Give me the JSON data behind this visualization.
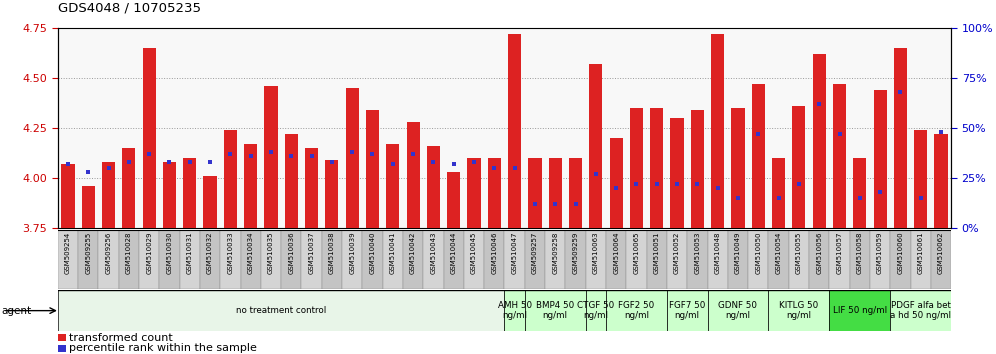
{
  "title": "GDS4048 / 10705235",
  "samples": [
    "GSM509254",
    "GSM509255",
    "GSM509256",
    "GSM510028",
    "GSM510029",
    "GSM510030",
    "GSM510031",
    "GSM510032",
    "GSM510033",
    "GSM510034",
    "GSM510035",
    "GSM510036",
    "GSM510037",
    "GSM510038",
    "GSM510039",
    "GSM510040",
    "GSM510041",
    "GSM510042",
    "GSM510043",
    "GSM510044",
    "GSM510045",
    "GSM510046",
    "GSM510047",
    "GSM509257",
    "GSM509258",
    "GSM509259",
    "GSM510063",
    "GSM510064",
    "GSM510065",
    "GSM510051",
    "GSM510052",
    "GSM510053",
    "GSM510048",
    "GSM510049",
    "GSM510050",
    "GSM510054",
    "GSM510055",
    "GSM510056",
    "GSM510057",
    "GSM510058",
    "GSM510059",
    "GSM510060",
    "GSM510061",
    "GSM510062"
  ],
  "transformed_counts": [
    4.07,
    3.96,
    4.08,
    4.15,
    4.65,
    4.08,
    4.1,
    4.01,
    4.24,
    4.17,
    4.46,
    4.22,
    4.15,
    4.09,
    4.45,
    4.34,
    4.17,
    4.28,
    4.16,
    4.03,
    4.1,
    4.1,
    4.72,
    4.1,
    4.1,
    4.1,
    4.57,
    4.2,
    4.35,
    4.35,
    4.3,
    4.34,
    4.72,
    4.35,
    4.47,
    4.1,
    4.36,
    4.62,
    4.47,
    4.1,
    4.44,
    4.65,
    4.24,
    4.22
  ],
  "percentile_ranks": [
    32,
    28,
    30,
    33,
    37,
    33,
    33,
    33,
    37,
    36,
    38,
    36,
    36,
    33,
    38,
    37,
    32,
    37,
    33,
    32,
    33,
    30,
    30,
    12,
    12,
    12,
    27,
    20,
    22,
    22,
    22,
    22,
    20,
    15,
    47,
    15,
    22,
    62,
    47,
    15,
    18,
    68,
    15,
    48
  ],
  "ylim_left": [
    3.75,
    4.75
  ],
  "ylim_right": [
    0,
    100
  ],
  "yticks_left": [
    3.75,
    4.0,
    4.25,
    4.5,
    4.75
  ],
  "yticks_right": [
    0,
    25,
    50,
    75,
    100
  ],
  "bar_color": "#dd2222",
  "dot_color": "#3333cc",
  "agent_groups": [
    {
      "label": "no treatment control",
      "start": 0,
      "end": 21,
      "color": "#e8f5e8"
    },
    {
      "label": "AMH 50\nng/ml",
      "start": 22,
      "end": 22,
      "color": "#ccffcc"
    },
    {
      "label": "BMP4 50\nng/ml",
      "start": 23,
      "end": 25,
      "color": "#ccffcc"
    },
    {
      "label": "CTGF 50\nng/ml",
      "start": 26,
      "end": 26,
      "color": "#ccffcc"
    },
    {
      "label": "FGF2 50\nng/ml",
      "start": 27,
      "end": 29,
      "color": "#ccffcc"
    },
    {
      "label": "FGF7 50\nng/ml",
      "start": 30,
      "end": 31,
      "color": "#ccffcc"
    },
    {
      "label": "GDNF 50\nng/ml",
      "start": 32,
      "end": 34,
      "color": "#ccffcc"
    },
    {
      "label": "KITLG 50\nng/ml",
      "start": 35,
      "end": 37,
      "color": "#ccffcc"
    },
    {
      "label": "LIF 50 ng/ml",
      "start": 38,
      "end": 40,
      "color": "#44dd44"
    },
    {
      "label": "PDGF alfa bet\na hd 50 ng/ml",
      "start": 41,
      "end": 43,
      "color": "#ccffcc"
    }
  ],
  "tick_label_color_left": "#cc0000",
  "tick_label_color_right": "#0000cc",
  "plot_bg": "#f8f8f8",
  "gridline_color": "#999999"
}
